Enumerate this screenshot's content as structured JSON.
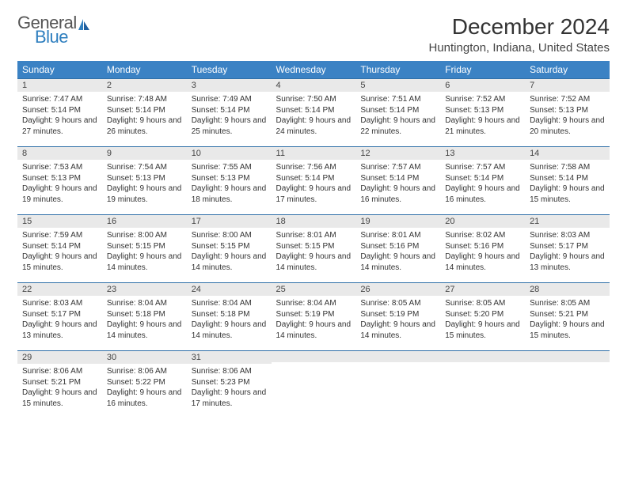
{
  "brand": {
    "line1": "General",
    "line2": "Blue"
  },
  "title": "December 2024",
  "location": "Huntington, Indiana, United States",
  "colors": {
    "header_bg": "#3b82c4",
    "header_text": "#ffffff",
    "daynum_bg": "#e9e9e9",
    "daynum_border": "#2f6fa8",
    "logo_gray": "#555555",
    "logo_blue": "#2f7fbf"
  },
  "weekdays": [
    "Sunday",
    "Monday",
    "Tuesday",
    "Wednesday",
    "Thursday",
    "Friday",
    "Saturday"
  ],
  "weeks": [
    [
      {
        "n": "1",
        "sr": "7:47 AM",
        "ss": "5:14 PM",
        "dl": "9 hours and 27 minutes."
      },
      {
        "n": "2",
        "sr": "7:48 AM",
        "ss": "5:14 PM",
        "dl": "9 hours and 26 minutes."
      },
      {
        "n": "3",
        "sr": "7:49 AM",
        "ss": "5:14 PM",
        "dl": "9 hours and 25 minutes."
      },
      {
        "n": "4",
        "sr": "7:50 AM",
        "ss": "5:14 PM",
        "dl": "9 hours and 24 minutes."
      },
      {
        "n": "5",
        "sr": "7:51 AM",
        "ss": "5:14 PM",
        "dl": "9 hours and 22 minutes."
      },
      {
        "n": "6",
        "sr": "7:52 AM",
        "ss": "5:13 PM",
        "dl": "9 hours and 21 minutes."
      },
      {
        "n": "7",
        "sr": "7:52 AM",
        "ss": "5:13 PM",
        "dl": "9 hours and 20 minutes."
      }
    ],
    [
      {
        "n": "8",
        "sr": "7:53 AM",
        "ss": "5:13 PM",
        "dl": "9 hours and 19 minutes."
      },
      {
        "n": "9",
        "sr": "7:54 AM",
        "ss": "5:13 PM",
        "dl": "9 hours and 19 minutes."
      },
      {
        "n": "10",
        "sr": "7:55 AM",
        "ss": "5:13 PM",
        "dl": "9 hours and 18 minutes."
      },
      {
        "n": "11",
        "sr": "7:56 AM",
        "ss": "5:14 PM",
        "dl": "9 hours and 17 minutes."
      },
      {
        "n": "12",
        "sr": "7:57 AM",
        "ss": "5:14 PM",
        "dl": "9 hours and 16 minutes."
      },
      {
        "n": "13",
        "sr": "7:57 AM",
        "ss": "5:14 PM",
        "dl": "9 hours and 16 minutes."
      },
      {
        "n": "14",
        "sr": "7:58 AM",
        "ss": "5:14 PM",
        "dl": "9 hours and 15 minutes."
      }
    ],
    [
      {
        "n": "15",
        "sr": "7:59 AM",
        "ss": "5:14 PM",
        "dl": "9 hours and 15 minutes."
      },
      {
        "n": "16",
        "sr": "8:00 AM",
        "ss": "5:15 PM",
        "dl": "9 hours and 14 minutes."
      },
      {
        "n": "17",
        "sr": "8:00 AM",
        "ss": "5:15 PM",
        "dl": "9 hours and 14 minutes."
      },
      {
        "n": "18",
        "sr": "8:01 AM",
        "ss": "5:15 PM",
        "dl": "9 hours and 14 minutes."
      },
      {
        "n": "19",
        "sr": "8:01 AM",
        "ss": "5:16 PM",
        "dl": "9 hours and 14 minutes."
      },
      {
        "n": "20",
        "sr": "8:02 AM",
        "ss": "5:16 PM",
        "dl": "9 hours and 14 minutes."
      },
      {
        "n": "21",
        "sr": "8:03 AM",
        "ss": "5:17 PM",
        "dl": "9 hours and 13 minutes."
      }
    ],
    [
      {
        "n": "22",
        "sr": "8:03 AM",
        "ss": "5:17 PM",
        "dl": "9 hours and 13 minutes."
      },
      {
        "n": "23",
        "sr": "8:04 AM",
        "ss": "5:18 PM",
        "dl": "9 hours and 14 minutes."
      },
      {
        "n": "24",
        "sr": "8:04 AM",
        "ss": "5:18 PM",
        "dl": "9 hours and 14 minutes."
      },
      {
        "n": "25",
        "sr": "8:04 AM",
        "ss": "5:19 PM",
        "dl": "9 hours and 14 minutes."
      },
      {
        "n": "26",
        "sr": "8:05 AM",
        "ss": "5:19 PM",
        "dl": "9 hours and 14 minutes."
      },
      {
        "n": "27",
        "sr": "8:05 AM",
        "ss": "5:20 PM",
        "dl": "9 hours and 15 minutes."
      },
      {
        "n": "28",
        "sr": "8:05 AM",
        "ss": "5:21 PM",
        "dl": "9 hours and 15 minutes."
      }
    ],
    [
      {
        "n": "29",
        "sr": "8:06 AM",
        "ss": "5:21 PM",
        "dl": "9 hours and 15 minutes."
      },
      {
        "n": "30",
        "sr": "8:06 AM",
        "ss": "5:22 PM",
        "dl": "9 hours and 16 minutes."
      },
      {
        "n": "31",
        "sr": "8:06 AM",
        "ss": "5:23 PM",
        "dl": "9 hours and 17 minutes."
      },
      null,
      null,
      null,
      null
    ]
  ],
  "labels": {
    "sunrise": "Sunrise:",
    "sunset": "Sunset:",
    "daylight": "Daylight:"
  }
}
